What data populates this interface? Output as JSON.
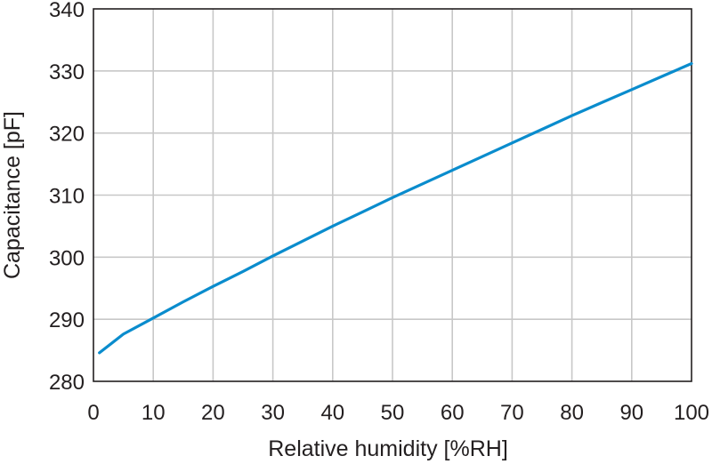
{
  "chart_data": {
    "type": "line",
    "title": "",
    "xlabel": "Relative humidity [%RH]",
    "ylabel": "Capacitance [pF]",
    "xlim": [
      0,
      100
    ],
    "ylim": [
      280,
      340
    ],
    "x_ticks": [
      0,
      10,
      20,
      30,
      40,
      50,
      60,
      70,
      80,
      90,
      100
    ],
    "y_ticks": [
      280,
      290,
      300,
      310,
      320,
      330,
      340
    ],
    "grid": true,
    "legend": "none",
    "series": [
      {
        "color": "#0a8ccd",
        "x": [
          1,
          5,
          10,
          15,
          20,
          25,
          30,
          35,
          40,
          45,
          50,
          55,
          60,
          65,
          70,
          75,
          80,
          85,
          90,
          95,
          100
        ],
        "y": [
          284.6,
          287.6,
          290.2,
          292.8,
          295.3,
          297.7,
          300.2,
          302.6,
          305.0,
          307.3,
          309.6,
          311.8,
          314.0,
          316.2,
          318.4,
          320.6,
          322.8,
          324.9,
          327.0,
          329.1,
          331.2
        ]
      }
    ]
  }
}
